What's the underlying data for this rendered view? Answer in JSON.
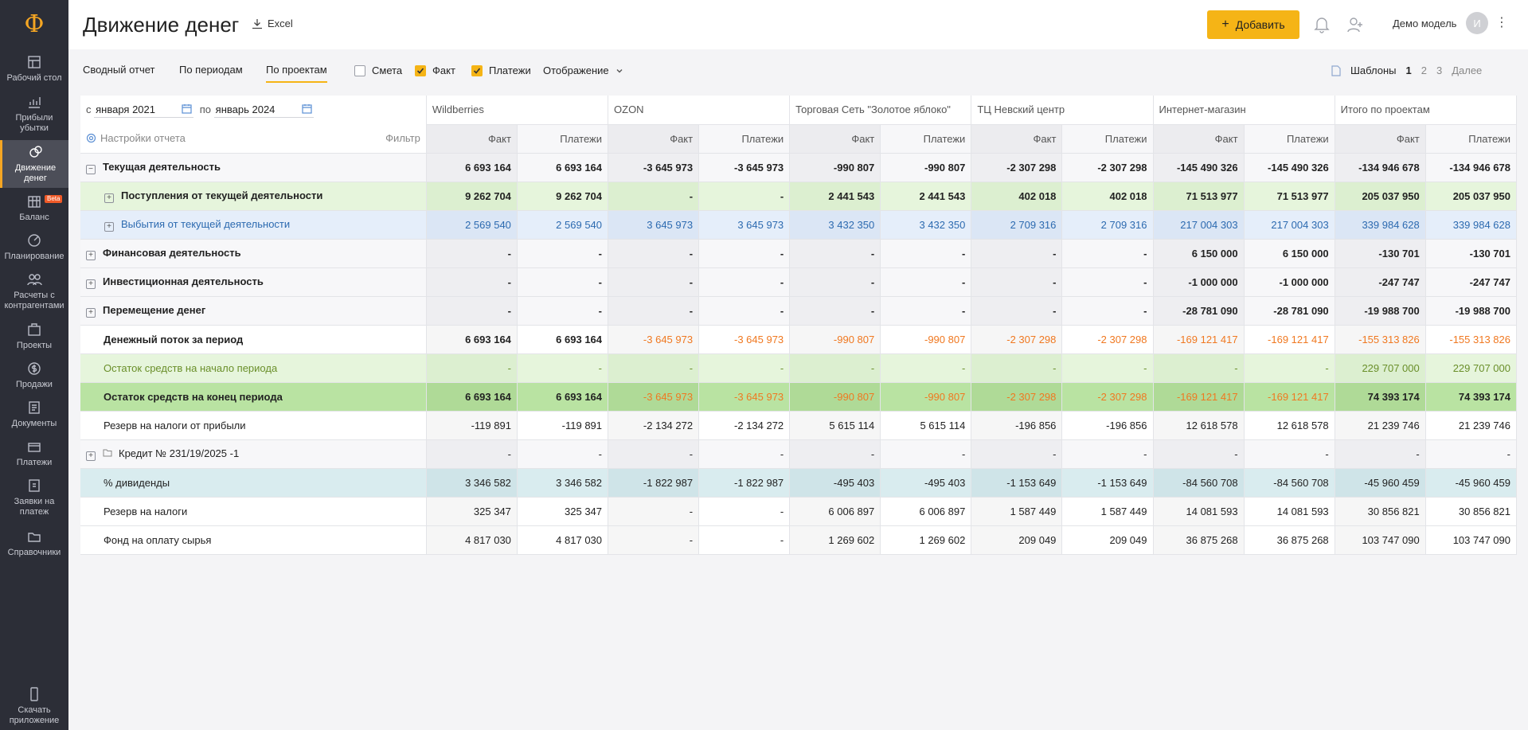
{
  "sidebar": {
    "logo": "Ф",
    "items": [
      {
        "label": "Рабочий стол",
        "icon": "desktop-icon"
      },
      {
        "label": "Прибыли убытки",
        "icon": "chart-icon"
      },
      {
        "label": "Движение денег",
        "icon": "money-flow-icon",
        "active": true
      },
      {
        "label": "Баланс",
        "icon": "balance-icon",
        "badge": "Beta"
      },
      {
        "label": "Планирование",
        "icon": "planning-icon"
      },
      {
        "label": "Расчеты с контрагентами",
        "icon": "contractors-icon"
      },
      {
        "label": "Проекты",
        "icon": "projects-icon"
      },
      {
        "label": "Продажи",
        "icon": "sales-icon"
      },
      {
        "label": "Документы",
        "icon": "documents-icon"
      },
      {
        "label": "Платежи",
        "icon": "payments-icon"
      },
      {
        "label": "Заявки на платеж",
        "icon": "requests-icon"
      },
      {
        "label": "Справочники",
        "icon": "folder-icon"
      }
    ],
    "download": "Скачать приложение"
  },
  "header": {
    "title": "Движение денег",
    "excel": "Excel",
    "add": "Добавить",
    "user": "Демо модель",
    "avatar": "И"
  },
  "toolbar": {
    "tabs": [
      "Сводный отчет",
      "По периодам",
      "По проектам"
    ],
    "active_tab": "По проектам",
    "checks": [
      {
        "label": "Смета",
        "checked": false
      },
      {
        "label": "Факт",
        "checked": true
      },
      {
        "label": "Платежи",
        "checked": true
      }
    ],
    "display": "Отображение",
    "templates": "Шаблоны",
    "pages": [
      "1",
      "2",
      "3"
    ],
    "next": "Далее"
  },
  "filter": {
    "from_prefix": "с",
    "from": "января 2021",
    "to_prefix": "по",
    "to": "январь 2024",
    "settings": "Настройки отчета",
    "filter": "Фильтр"
  },
  "columns": {
    "projects": [
      "Wildberries",
      "OZON",
      "Торговая Сеть \"Золотое яблоко\"",
      "ТЦ Невский центр",
      "Интернет-магазин",
      "Итого по проектам"
    ],
    "fact": "Факт",
    "payments": "Платежи"
  },
  "rows": [
    {
      "label": "Текущая деятельность",
      "exp": "−",
      "style": "bold",
      "values": [
        "6 693 164",
        "6 693 164",
        "-3 645 973",
        "-3 645 973",
        "-990 807",
        "-990 807",
        "-2 307 298",
        "-2 307 298",
        "-145 490 326",
        "-145 490 326",
        "-134 946 678",
        "-134 946 678"
      ]
    },
    {
      "label": "Поступления от текущей деятельности",
      "exp": "+",
      "indent": true,
      "style": "bold",
      "row": "green-light",
      "values": [
        "9 262 704",
        "9 262 704",
        "-",
        "-",
        "2 441 543",
        "2 441 543",
        "402 018",
        "402 018",
        "71 513 977",
        "71 513 977",
        "205 037 950",
        "205 037 950"
      ]
    },
    {
      "label": "Выбытия от текущей деятельности",
      "exp": "+",
      "indent": true,
      "style": "blue",
      "row": "blue-light",
      "values": [
        "2 569 540",
        "2 569 540",
        "3 645 973",
        "3 645 973",
        "3 432 350",
        "3 432 350",
        "2 709 316",
        "2 709 316",
        "217 004 303",
        "217 004 303",
        "339 984 628",
        "339 984 628"
      ]
    },
    {
      "label": "Финансовая деятельность",
      "exp": "+",
      "style": "bold",
      "values": [
        "-",
        "-",
        "-",
        "-",
        "-",
        "-",
        "-",
        "-",
        "6 150 000",
        "6 150 000",
        "-130 701",
        "-130 701"
      ]
    },
    {
      "label": "Инвестиционная деятельность",
      "exp": "+",
      "style": "bold",
      "values": [
        "-",
        "-",
        "-",
        "-",
        "-",
        "-",
        "-",
        "-",
        "-1 000 000",
        "-1 000 000",
        "-247 747",
        "-247 747"
      ]
    },
    {
      "label": "Перемещение денег",
      "exp": "+",
      "style": "bold",
      "values": [
        "-",
        "-",
        "-",
        "-",
        "-",
        "-",
        "-",
        "-",
        "-28 781 090",
        "-28 781 090",
        "-19 988 700",
        "-19 988 700"
      ]
    },
    {
      "label": "Денежный поток за период",
      "style": "bold",
      "neg_orange": true,
      "row": "white",
      "values": [
        "6 693 164",
        "6 693 164",
        "-3 645 973",
        "-3 645 973",
        "-990 807",
        "-990 807",
        "-2 307 298",
        "-2 307 298",
        "-169 121 417",
        "-169 121 417",
        "-155 313 826",
        "-155 313 826"
      ]
    },
    {
      "label": "Остаток средств на начало периода",
      "style": "olive",
      "row": "green-light",
      "values": [
        "-",
        "-",
        "-",
        "-",
        "-",
        "-",
        "-",
        "-",
        "-",
        "-",
        "229 707 000",
        "229 707 000"
      ]
    },
    {
      "label": "Остаток средств на конец периода",
      "style": "bold",
      "neg_orange": true,
      "row": "green-dark",
      "values": [
        "6 693 164",
        "6 693 164",
        "-3 645 973",
        "-3 645 973",
        "-990 807",
        "-990 807",
        "-2 307 298",
        "-2 307 298",
        "-169 121 417",
        "-169 121 417",
        "74 393 174",
        "74 393 174"
      ]
    },
    {
      "label": "Резерв на налоги от прибыли",
      "row": "white",
      "values": [
        "-119 891",
        "-119 891",
        "-2 134 272",
        "-2 134 272",
        "5 615 114",
        "5 615 114",
        "-196 856",
        "-196 856",
        "12 618 578",
        "12 618 578",
        "21 239 746",
        "21 239 746"
      ]
    },
    {
      "label": "Кредит № 231/19/2025 -1",
      "exp": "+",
      "folder": true,
      "row": "grey",
      "values": [
        "-",
        "-",
        "-",
        "-",
        "-",
        "-",
        "-",
        "-",
        "-",
        "-",
        "-",
        "-"
      ]
    },
    {
      "label": "% дивиденды",
      "row": "teal",
      "values": [
        "3 346 582",
        "3 346 582",
        "-1 822 987",
        "-1 822 987",
        "-495 403",
        "-495 403",
        "-1 153 649",
        "-1 153 649",
        "-84 560 708",
        "-84 560 708",
        "-45 960 459",
        "-45 960 459"
      ]
    },
    {
      "label": "Резерв на налоги",
      "row": "white",
      "values": [
        "325 347",
        "325 347",
        "-",
        "-",
        "6 006 897",
        "6 006 897",
        "1 587 449",
        "1 587 449",
        "14 081 593",
        "14 081 593",
        "30 856 821",
        "30 856 821"
      ]
    },
    {
      "label": "Фонд на оплату сырья",
      "row": "white",
      "values": [
        "4 817 030",
        "4 817 030",
        "-",
        "-",
        "1 269 602",
        "1 269 602",
        "209 049",
        "209 049",
        "36 875 268",
        "36 875 268",
        "103 747 090",
        "103 747 090"
      ]
    }
  ]
}
